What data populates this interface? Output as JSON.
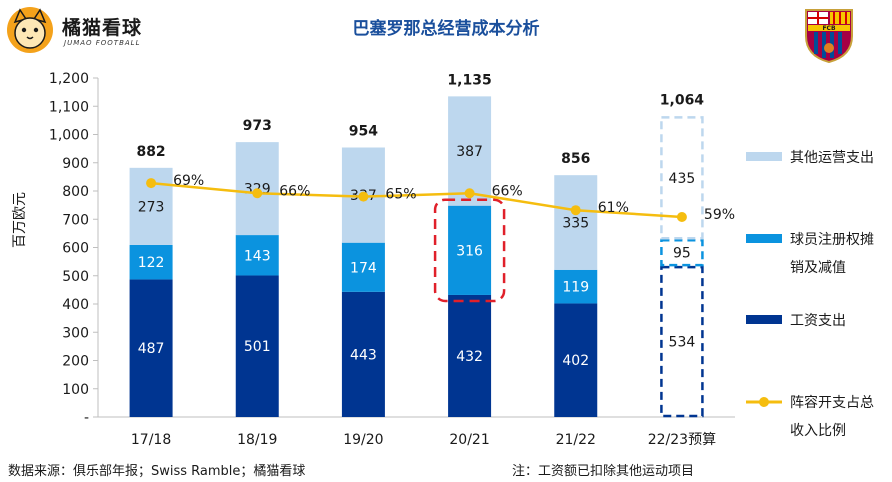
{
  "header": {
    "brand_name": "橘猫看球",
    "brand_sub": "JUMAO FOOTBALL",
    "crest_text": "FCB"
  },
  "chart_data": {
    "type": "bar",
    "stacked": true,
    "title": "巴塞罗那总经营成本分析",
    "ylabel": "百万欧元",
    "xlabel": "",
    "ylim": [
      0,
      1200
    ],
    "yticks": [
      "-",
      "100",
      "200",
      "300",
      "400",
      "500",
      "600",
      "700",
      "800",
      "900",
      "1,000",
      "1,100",
      "1,200"
    ],
    "categories": [
      "17/18",
      "18/19",
      "19/20",
      "20/21",
      "21/22",
      "22/23预算"
    ],
    "series": [
      {
        "name": "工资支出",
        "color": "#003591",
        "values": [
          487,
          501,
          443,
          432,
          402,
          534
        ]
      },
      {
        "name": "球员注册权摊销及减值",
        "color": "#0b93df",
        "values": [
          122,
          143,
          174,
          316,
          119,
          95
        ]
      },
      {
        "name": "其他运营支出",
        "color": "#bdd7ee",
        "values": [
          273,
          329,
          337,
          387,
          335,
          435
        ]
      }
    ],
    "totals": [
      "882",
      "973",
      "954",
      "1,135",
      "856",
      "1,064"
    ],
    "line_series": {
      "name": "阵容开支占总收入比例",
      "color": "#f5bd0f",
      "values": [
        69,
        66,
        65,
        66,
        61,
        59
      ],
      "labels": [
        "69%",
        "66%",
        "65%",
        "66%",
        "61%",
        "59%"
      ]
    },
    "highlight_category": "20/21",
    "budget_category": "22/23预算",
    "legend_position": "right",
    "grid": false
  },
  "legend": {
    "other_line1": "其他运营支出",
    "amort_line1": "球员注册权摊",
    "amort_line2": "销及减值",
    "wage_line1": "工资支出",
    "ratio_line1": "阵容开支占总",
    "ratio_line2": "收入比例"
  },
  "footer": {
    "source": "数据来源：俱乐部年报；Swiss Ramble；橘猫看球",
    "note": "注：工资额已扣除其他运动项目"
  }
}
